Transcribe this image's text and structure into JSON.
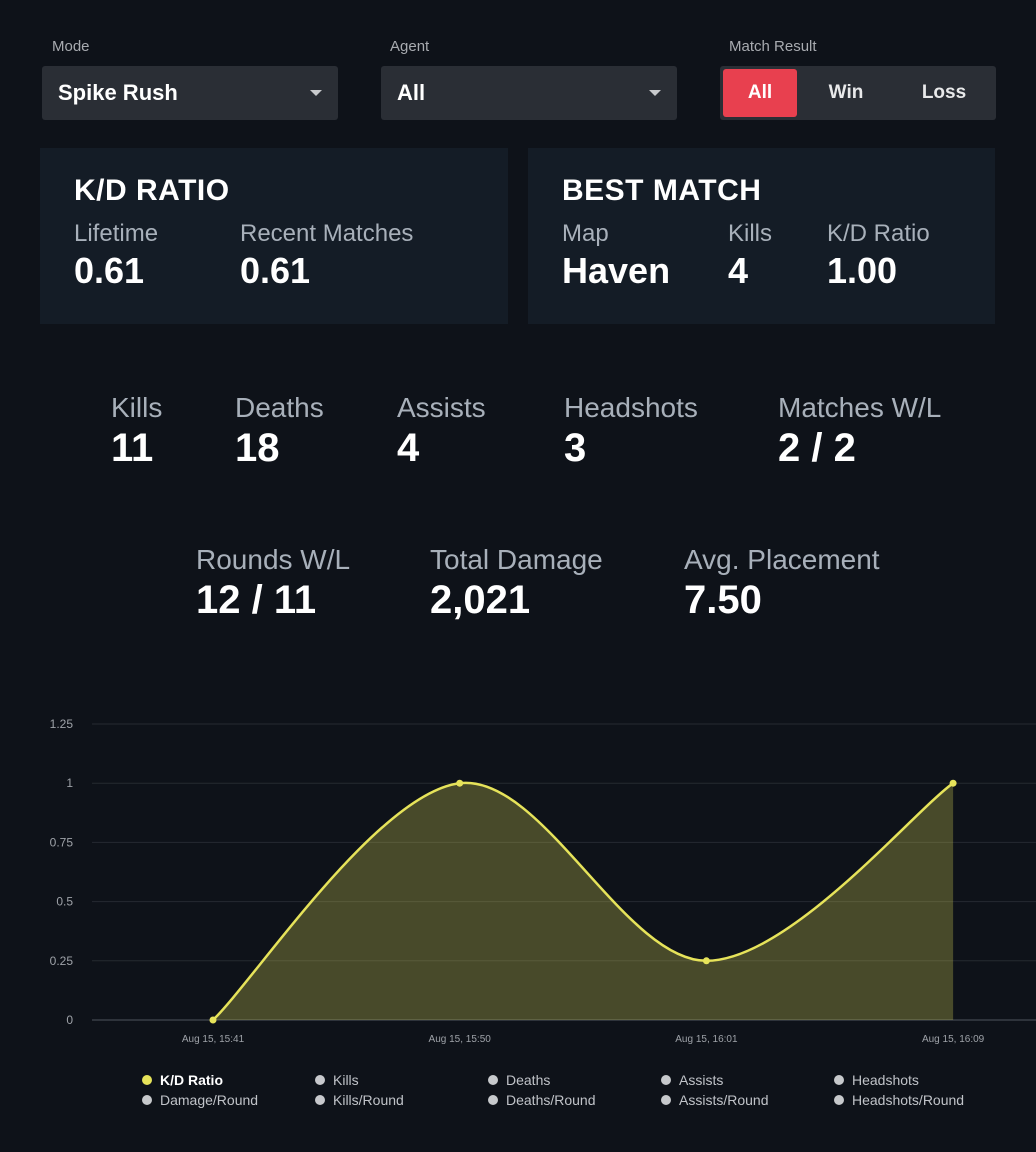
{
  "filters": {
    "mode_label": "Mode",
    "mode_value": "Spike Rush",
    "agent_label": "Agent",
    "agent_value": "All",
    "result_label": "Match Result",
    "result_options": [
      "All",
      "Win",
      "Loss"
    ],
    "result_selected": "All"
  },
  "kd_card": {
    "title": "K/D RATIO",
    "lifetime_label": "Lifetime",
    "lifetime_value": "0.61",
    "recent_label": "Recent Matches",
    "recent_value": "0.61"
  },
  "best_card": {
    "title": "BEST MATCH",
    "map_label": "Map",
    "map_value": "Haven",
    "kills_label": "Kills",
    "kills_value": "4",
    "kd_label": "K/D Ratio",
    "kd_value": "1.00"
  },
  "stats": [
    {
      "label": "Kills",
      "value": "11"
    },
    {
      "label": "Deaths",
      "value": "18"
    },
    {
      "label": "Assists",
      "value": "4"
    },
    {
      "label": "Headshots",
      "value": "3"
    },
    {
      "label": "Matches W/L",
      "value": "2 / 2"
    },
    {
      "label": "Rounds W/L",
      "value": "12 / 11"
    },
    {
      "label": "Total Damage",
      "value": "2,021"
    },
    {
      "label": "Avg. Placement",
      "value": "7.50"
    }
  ],
  "chart_data": {
    "type": "area",
    "x": [
      "Aug 15, 15:41",
      "Aug 15, 15:50",
      "Aug 15, 16:01",
      "Aug 15, 16:09"
    ],
    "series": [
      {
        "name": "K/D Ratio",
        "values": [
          0,
          1,
          0.25,
          1
        ],
        "color": "#e6e35a"
      }
    ],
    "ylim": [
      0,
      1.25
    ],
    "yticks": [
      "0",
      "0.25",
      "0.5",
      "0.75",
      "1",
      "1.25"
    ],
    "grid": true,
    "legend_position": "bottom",
    "legend": [
      "K/D Ratio",
      "Kills",
      "Deaths",
      "Assists",
      "Headshots",
      "Damage/Round",
      "Kills/Round",
      "Deaths/Round",
      "Assists/Round",
      "Headshots/Round"
    ]
  }
}
